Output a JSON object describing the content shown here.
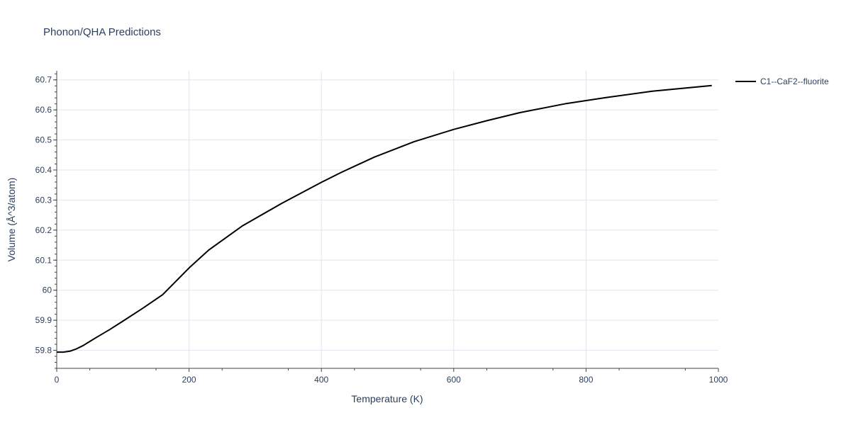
{
  "chart_data": {
    "type": "line",
    "title": "Phonon/QHA Predictions",
    "xlabel": "Temperature (K)",
    "ylabel": "Volume (Å^3/atom)",
    "xlim": [
      0,
      1000
    ],
    "ylim": [
      59.74,
      60.73
    ],
    "x_ticks": [
      0,
      200,
      400,
      600,
      800,
      1000
    ],
    "x_tick_labels": [
      "0",
      "200",
      "400",
      "600",
      "800",
      "1000"
    ],
    "y_ticks": [
      59.8,
      59.9,
      60.0,
      60.1,
      60.2,
      60.3,
      60.4,
      60.5,
      60.6,
      60.7
    ],
    "y_tick_labels": [
      "59.8",
      "59.9",
      "60",
      "60.1",
      "60.2",
      "60.3",
      "60.4",
      "60.5",
      "60.6",
      "60.7"
    ],
    "grid": true,
    "legend_position": "top-right",
    "series": [
      {
        "name": "C1--CaF2--fluorite",
        "color": "#000000",
        "x": [
          0,
          10,
          20,
          30,
          40,
          60,
          80,
          100,
          130,
          160,
          200,
          230,
          280,
          340,
          400,
          430,
          480,
          540,
          600,
          650,
          700,
          770,
          830,
          900,
          990
        ],
        "y": [
          59.794,
          59.794,
          59.797,
          59.805,
          59.816,
          59.843,
          59.869,
          59.897,
          59.94,
          59.985,
          60.074,
          60.134,
          60.213,
          60.289,
          60.359,
          60.392,
          60.443,
          60.494,
          60.535,
          60.564,
          60.591,
          60.621,
          60.641,
          60.662,
          60.681
        ]
      }
    ]
  }
}
